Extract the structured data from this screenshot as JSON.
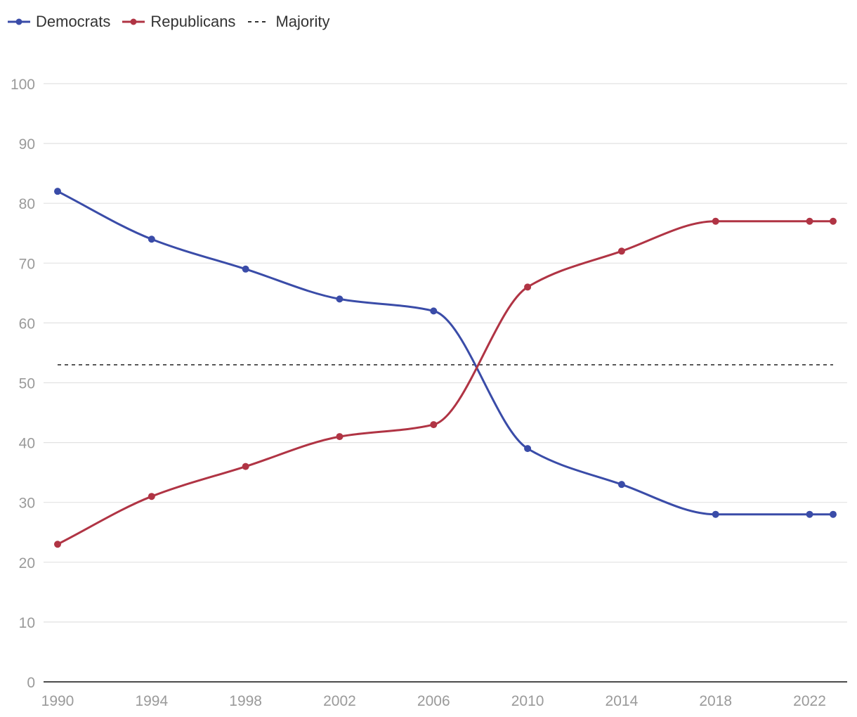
{
  "chart_data": {
    "type": "line",
    "title": "",
    "xlabel": "",
    "ylabel": "",
    "ylim": [
      0,
      100
    ],
    "yticks": [
      0,
      10,
      20,
      30,
      40,
      50,
      60,
      70,
      80,
      90,
      100
    ],
    "xlim": [
      1990,
      2023
    ],
    "xticks": [
      1990,
      1994,
      1998,
      2002,
      2006,
      2010,
      2014,
      2018,
      2022
    ],
    "grid": true,
    "legend_position": "top-left",
    "series": [
      {
        "name": "Democrats",
        "color": "#3a4ca8",
        "x": [
          1990,
          1994,
          1998,
          2002,
          2006,
          2010,
          2014,
          2018,
          2022,
          2023
        ],
        "y": [
          82,
          74,
          69,
          64,
          62,
          39,
          33,
          28,
          28,
          28
        ]
      },
      {
        "name": "Republicans",
        "color": "#b03444",
        "x": [
          1990,
          1994,
          1998,
          2002,
          2006,
          2010,
          2014,
          2018,
          2022,
          2023
        ],
        "y": [
          23,
          31,
          36,
          41,
          43,
          66,
          72,
          77,
          77,
          77
        ]
      }
    ],
    "reference_lines": [
      {
        "name": "Majority",
        "value": 53,
        "color": "#333333",
        "style": "dashed"
      }
    ]
  }
}
